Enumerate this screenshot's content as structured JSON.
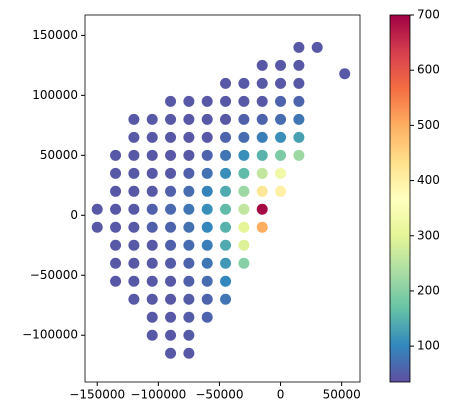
{
  "chart_data": {
    "type": "scatter",
    "x": [
      15000,
      30000,
      -15000,
      0,
      15000,
      -45000,
      -30000,
      -15000,
      0,
      15000,
      -90000,
      -75000,
      -60000,
      -45000,
      -30000,
      -15000,
      0,
      15000,
      -120000,
      -105000,
      -90000,
      -75000,
      -60000,
      -45000,
      -30000,
      -15000,
      0,
      15000,
      -120000,
      -105000,
      -90000,
      -75000,
      -60000,
      -45000,
      -30000,
      -15000,
      0,
      15000,
      -135000,
      -120000,
      -105000,
      -90000,
      -75000,
      -60000,
      -45000,
      -30000,
      -15000,
      0,
      15000,
      -135000,
      -120000,
      -105000,
      -90000,
      -75000,
      -60000,
      -45000,
      -30000,
      -15000,
      0,
      -135000,
      -120000,
      -105000,
      -90000,
      -75000,
      -60000,
      -45000,
      -30000,
      -15000,
      0,
      -150000,
      -135000,
      -120000,
      -105000,
      -90000,
      -75000,
      -60000,
      -45000,
      -30000,
      -15000,
      -150000,
      -135000,
      -120000,
      -105000,
      -90000,
      -75000,
      -60000,
      -45000,
      -30000,
      -15000,
      -135000,
      -120000,
      -105000,
      -90000,
      -75000,
      -60000,
      -45000,
      -30000,
      -135000,
      -120000,
      -105000,
      -90000,
      -75000,
      -60000,
      -45000,
      -30000,
      -135000,
      -120000,
      -105000,
      -90000,
      -75000,
      -60000,
      -45000,
      -120000,
      -105000,
      -90000,
      -75000,
      -60000,
      -45000,
      -105000,
      -90000,
      -75000,
      -60000,
      -105000,
      -90000,
      -75000,
      -90000,
      -75000,
      52500
    ],
    "y": [
      140000,
      140000,
      125000,
      125000,
      125000,
      110000,
      110000,
      110000,
      110000,
      110000,
      95000,
      95000,
      95000,
      95000,
      95000,
      95000,
      95000,
      95000,
      80000,
      80000,
      80000,
      80000,
      80000,
      80000,
      80000,
      80000,
      80000,
      80000,
      65000,
      65000,
      65000,
      65000,
      65000,
      65000,
      65000,
      65000,
      65000,
      65000,
      50000,
      50000,
      50000,
      50000,
      50000,
      50000,
      50000,
      50000,
      50000,
      50000,
      50000,
      35000,
      35000,
      35000,
      35000,
      35000,
      35000,
      35000,
      35000,
      35000,
      35000,
      20000,
      20000,
      20000,
      20000,
      20000,
      20000,
      20000,
      20000,
      20000,
      20000,
      5000,
      5000,
      5000,
      5000,
      5000,
      5000,
      5000,
      5000,
      5000,
      5000,
      -10000,
      -10000,
      -10000,
      -10000,
      -10000,
      -10000,
      -10000,
      -10000,
      -10000,
      -10000,
      -25000,
      -25000,
      -25000,
      -25000,
      -25000,
      -25000,
      -25000,
      -25000,
      -40000,
      -40000,
      -40000,
      -40000,
      -40000,
      -40000,
      -40000,
      -40000,
      -55000,
      -55000,
      -55000,
      -55000,
      -55000,
      -55000,
      -55000,
      -70000,
      -70000,
      -70000,
      -70000,
      -70000,
      -70000,
      -85000,
      -85000,
      -85000,
      -85000,
      -100000,
      -100000,
      -100000,
      -115000,
      -115000,
      118000
    ],
    "values": [
      45,
      45,
      45,
      45,
      45,
      45,
      45,
      45,
      45,
      45,
      45,
      45,
      45,
      45,
      45,
      45,
      60,
      60,
      45,
      45,
      45,
      45,
      45,
      45,
      55,
      60,
      70,
      80,
      45,
      45,
      45,
      45,
      45,
      60,
      70,
      90,
      110,
      130,
      45,
      45,
      45,
      45,
      45,
      60,
      80,
      110,
      150,
      190,
      220,
      45,
      45,
      45,
      45,
      55,
      75,
      110,
      160,
      260,
      330,
      45,
      45,
      45,
      55,
      70,
      95,
      140,
      220,
      420,
      400,
      45,
      45,
      45,
      55,
      65,
      80,
      110,
      160,
      260,
      690,
      45,
      45,
      45,
      55,
      60,
      75,
      100,
      150,
      300,
      500,
      45,
      45,
      45,
      55,
      70,
      90,
      140,
      290,
      45,
      45,
      45,
      50,
      60,
      80,
      120,
      200,
      45,
      45,
      45,
      45,
      55,
      70,
      100,
      45,
      45,
      45,
      50,
      60,
      80,
      45,
      45,
      50,
      60,
      45,
      45,
      50,
      45,
      45,
      45
    ],
    "colormap": "Spectral_r",
    "xlim": [
      -160000,
      65000
    ],
    "ylim": [
      -139000,
      167000
    ],
    "clim": [
      35,
      700
    ],
    "xticks": [
      {
        "value": -150000,
        "label": "−150000"
      },
      {
        "value": -100000,
        "label": "−100000"
      },
      {
        "value": -50000,
        "label": "−50000"
      },
      0,
      50000
    ],
    "yticks": [
      {
        "value": -100000,
        "label": "−100000"
      },
      {
        "value": -50000,
        "label": "−50000"
      },
      0,
      50000,
      100000,
      150000
    ],
    "cticks": [
      100,
      200,
      300,
      400,
      500,
      600,
      700
    ]
  }
}
